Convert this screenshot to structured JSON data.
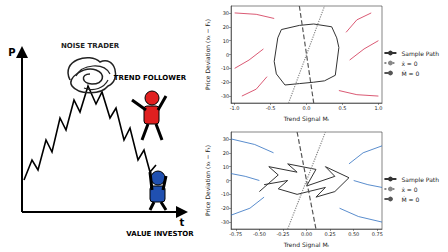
{
  "cartoon": {
    "y_axis_label": "P",
    "x_axis_label": "t",
    "figures": [
      {
        "label": "NOISE TRADER",
        "color": "#222222"
      },
      {
        "label": "TREND FOLLOWER",
        "color": "#e02020"
      },
      {
        "label": "VALUE INVESTOR",
        "color": "#2050b0"
      }
    ]
  },
  "chart_data": [
    {
      "type": "line",
      "x_label": "Trend Signal Mₜ",
      "y_label": "Price Deviation (xₜ − Fₜ)",
      "xlim": [
        -1.05,
        1.05
      ],
      "xticks": [
        {
          "value": -1,
          "label": "-1.0"
        },
        {
          "value": -0.5,
          "label": "-0.5"
        },
        {
          "value": 0,
          "label": "0.0"
        },
        {
          "value": 0.5,
          "label": "0.5"
        },
        {
          "value": 1,
          "label": "1.0"
        }
      ],
      "ylim": [
        -35,
        35
      ],
      "yticks": [
        -30,
        -20,
        -10,
        0,
        10,
        20,
        30
      ],
      "grid": false,
      "legend": "right",
      "series": [
        {
          "name": "Sample Path",
          "color": "#333333",
          "line_style": "solid",
          "x": [
            -0.35,
            -0.1,
            0.1,
            0.35,
            0.42,
            0.45,
            0.4,
            0.25,
            0.1,
            -0.1,
            -0.3,
            -0.42,
            -0.45,
            -0.4,
            -0.35
          ],
          "values": [
            18,
            21,
            22,
            20,
            12,
            5,
            -15,
            -19,
            -20,
            -21,
            -22,
            -14,
            -5,
            12,
            18
          ]
        },
        {
          "name": "ẋ = 0",
          "color": "#888888",
          "line_style": "dotted",
          "x": [
            -0.25,
            0,
            0.25
          ],
          "values": [
            -35,
            0,
            35
          ]
        },
        {
          "name": "Ṁ = 0",
          "color": "#555555",
          "line_style": "dashed",
          "x": [
            -0.1,
            0,
            0.1
          ],
          "values": [
            35,
            0,
            -35
          ]
        }
      ],
      "streamlines": {
        "color": "#d03050",
        "lines": [
          {
            "x": [
              -1,
              -0.7,
              -0.45
            ],
            "values": [
              30,
              29,
              26
            ]
          },
          {
            "x": [
              1,
              0.7,
              0.45
            ],
            "values": [
              -30,
              -29,
              -26
            ]
          },
          {
            "x": [
              -1,
              -0.8,
              -0.6
            ],
            "values": [
              -10,
              -4,
              4
            ]
          },
          {
            "x": [
              1,
              0.8,
              0.6
            ],
            "values": [
              10,
              4,
              -4
            ]
          },
          {
            "x": [
              -0.9,
              -0.7,
              -0.55
            ],
            "values": [
              -30,
              -25,
              -16
            ]
          },
          {
            "x": [
              0.9,
              0.7,
              0.55
            ],
            "values": [
              30,
              25,
              16
            ]
          }
        ]
      }
    },
    {
      "type": "line",
      "x_label": "Trend Signal Mₜ",
      "y_label": "Price Deviation (xₜ − Fₜ)",
      "xlim": [
        -0.8,
        0.8
      ],
      "xticks": [
        {
          "value": -0.75,
          "label": "-0.75"
        },
        {
          "value": -0.5,
          "label": "-0.50"
        },
        {
          "value": -0.25,
          "label": "-0.25"
        },
        {
          "value": 0,
          "label": "0.00"
        },
        {
          "value": 0.25,
          "label": "0.25"
        },
        {
          "value": 0.5,
          "label": "0.50"
        },
        {
          "value": 0.75,
          "label": "0.75"
        }
      ],
      "ylim": [
        -35,
        35
      ],
      "yticks": [
        -30,
        -20,
        -10,
        0,
        10,
        20,
        30
      ],
      "grid": false,
      "legend": "right",
      "series": [
        {
          "name": "Sample Path",
          "color": "#333333",
          "line_style": "solid",
          "x": [
            -0.5,
            -0.3,
            -0.4,
            -0.1,
            -0.2,
            0.1,
            0.0,
            0.3,
            0.2,
            0.45,
            0.3,
            0.1,
            0.2,
            -0.1,
            -0.3,
            -0.2,
            -0.45
          ],
          "values": [
            -8,
            4,
            10,
            6,
            12,
            8,
            -4,
            3,
            10,
            2,
            -8,
            -12,
            -5,
            -10,
            -6,
            0,
            -3
          ]
        },
        {
          "name": "ẋ = 0",
          "color": "#888888",
          "line_style": "dotted",
          "x": [
            -0.2,
            0,
            0.2
          ],
          "values": [
            -35,
            0,
            35
          ]
        },
        {
          "name": "Ṁ = 0",
          "color": "#555555",
          "line_style": "dashed",
          "x": [
            -0.1,
            0,
            0.1
          ],
          "values": [
            35,
            0,
            -35
          ]
        }
      ],
      "streamlines": {
        "color": "#3070c0",
        "lines": [
          {
            "x": [
              -0.8,
              -0.55,
              -0.35
            ],
            "values": [
              30,
              26,
              20
            ]
          },
          {
            "x": [
              0.8,
              0.55,
              0.35
            ],
            "values": [
              -30,
              -26,
              -20
            ]
          },
          {
            "x": [
              -0.8,
              -0.6,
              -0.45
            ],
            "values": [
              -25,
              -20,
              -12
            ]
          },
          {
            "x": [
              0.8,
              0.6,
              0.45
            ],
            "values": [
              25,
              20,
              12
            ]
          },
          {
            "x": [
              -0.8,
              -0.65,
              -0.5
            ],
            "values": [
              5,
              3,
              0
            ]
          },
          {
            "x": [
              0.8,
              0.65,
              0.5
            ],
            "values": [
              -5,
              -3,
              0
            ]
          }
        ]
      }
    }
  ]
}
